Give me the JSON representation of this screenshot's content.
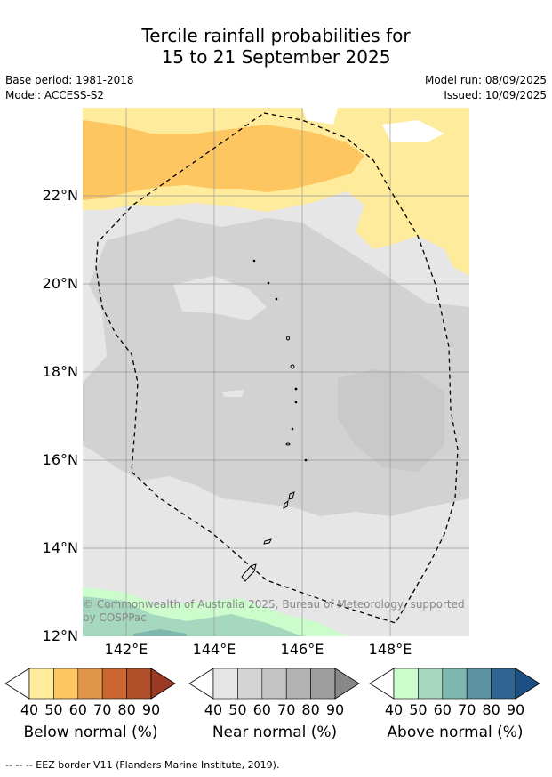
{
  "title": {
    "line1": "Tercile rainfall probabilities for",
    "line2": "15 to 21 September 2025"
  },
  "meta": {
    "base_period": "Base period: 1981-2018",
    "model": "Model: ACCESS-S2",
    "model_run": "Model run: 08/09/2025",
    "issued": "Issued: 10/09/2025"
  },
  "map": {
    "lat_labels": [
      "22°N",
      "20°N",
      "18°N",
      "16°N",
      "14°N",
      "12°N"
    ],
    "lon_labels": [
      "142°E",
      "144°E",
      "146°E",
      "148°E"
    ],
    "copyright": "© Commonwealth of Australia 2025, Bureau of Meteorology, supported by COSPPac"
  },
  "legends": [
    {
      "name": "below",
      "title": "Below normal (%)",
      "ticks": [
        "40",
        "50",
        "60",
        "70",
        "80",
        "90"
      ],
      "colors": [
        "#ffeb9c",
        "#fec661",
        "#e0954a",
        "#cc6633",
        "#b0502a",
        "#9b3a24"
      ]
    },
    {
      "name": "near",
      "title": "Near normal (%)",
      "ticks": [
        "40",
        "50",
        "60",
        "70",
        "80",
        "90"
      ],
      "colors": [
        "#e6e6e6",
        "#d4d4d4",
        "#c4c4c4",
        "#b2b2b2",
        "#9e9e9e",
        "#888888"
      ]
    },
    {
      "name": "above",
      "title": "Above normal (%)",
      "ticks": [
        "40",
        "50",
        "60",
        "70",
        "80",
        "90"
      ],
      "colors": [
        "#ccfccc",
        "#a5d8be",
        "#7fb6ae",
        "#5b91a1",
        "#306592",
        "#1d4f84"
      ]
    }
  ],
  "footnote": "--  --  -- EEZ border V11 (Flanders Marine Institute, 2019)."
}
